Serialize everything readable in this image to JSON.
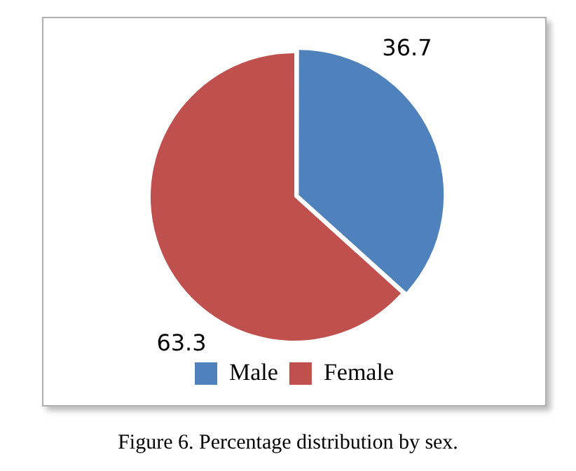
{
  "chart_data": {
    "type": "pie",
    "categories": [
      "Male",
      "Female"
    ],
    "values": [
      36.7,
      63.3
    ],
    "colors": [
      "#4f81bd",
      "#c0504d"
    ],
    "data_labels": true,
    "legend": "bottom",
    "annotations": [
      "Figure 6. Percentage distribution by sex."
    ]
  }
}
